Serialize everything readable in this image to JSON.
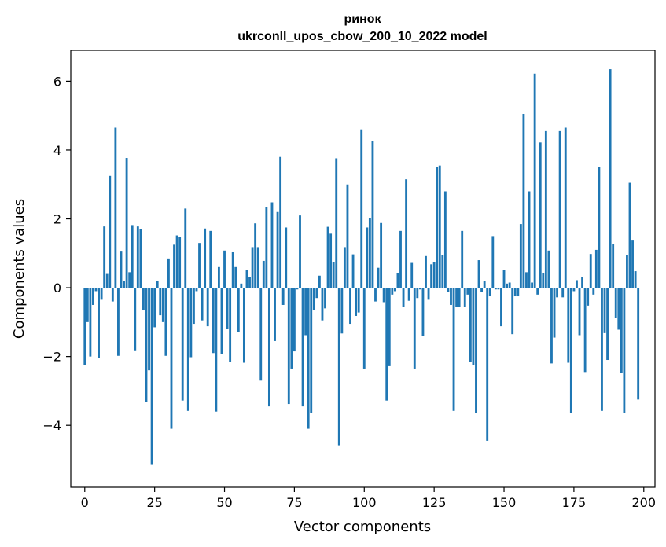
{
  "chart_data": {
    "type": "bar",
    "title_line1": "ринок",
    "title_line2": "ukrconll_upos_cbow_200_10_2022 model",
    "xlabel": "Vector components",
    "ylabel": "Components values",
    "xlim": [
      -5,
      204
    ],
    "ylim": [
      -5.8,
      6.9
    ],
    "x_ticks": [
      0,
      25,
      50,
      75,
      100,
      125,
      150,
      175,
      200
    ],
    "y_ticks": [
      -4,
      -2,
      0,
      2,
      4,
      6
    ],
    "grid": false,
    "bar_color": "#1f77b4",
    "values": [
      -2.25,
      -1.0,
      -2.0,
      -0.5,
      -0.1,
      -2.05,
      -0.35,
      1.78,
      0.4,
      3.25,
      -0.4,
      4.65,
      -1.98,
      1.05,
      0.2,
      3.77,
      0.45,
      1.82,
      -1.82,
      1.78,
      1.7,
      -0.65,
      -3.32,
      -2.4,
      -5.15,
      -1.15,
      0.2,
      -0.8,
      -1.0,
      -1.98,
      0.85,
      -4.1,
      1.25,
      1.52,
      1.47,
      -3.28,
      2.3,
      -3.58,
      -2.02,
      -1.05,
      -0.1,
      1.3,
      -0.95,
      1.72,
      -1.12,
      1.65,
      -1.9,
      -3.6,
      0.6,
      -1.92,
      1.08,
      -1.2,
      -2.15,
      1.03,
      0.6,
      -1.3,
      0.12,
      -2.18,
      0.52,
      0.3,
      1.18,
      1.87,
      1.18,
      -2.7,
      0.78,
      2.35,
      -3.45,
      2.48,
      -1.55,
      2.2,
      3.8,
      -0.5,
      1.75,
      -3.38,
      -2.35,
      -1.85,
      -0.05,
      2.1,
      -3.45,
      -1.38,
      -4.1,
      -3.65,
      -0.65,
      -0.3,
      0.35,
      -0.95,
      -0.6,
      1.77,
      1.57,
      0.75,
      3.76,
      -4.58,
      -1.33,
      1.18,
      3.0,
      -1.05,
      0.97,
      -0.82,
      -0.72,
      4.6,
      -2.35,
      1.75,
      2.02,
      4.27,
      -0.4,
      0.58,
      1.88,
      -0.42,
      -3.28,
      -2.28,
      -0.2,
      -0.1,
      0.42,
      1.65,
      -0.55,
      3.15,
      -0.38,
      0.72,
      -2.35,
      -0.3,
      -0.05,
      -1.4,
      0.92,
      -0.35,
      0.68,
      0.75,
      3.5,
      3.55,
      0.95,
      2.8,
      -0.12,
      -0.5,
      -3.58,
      -0.55,
      -0.55,
      1.65,
      -0.55,
      -0.2,
      -2.15,
      -2.25,
      -3.65,
      0.8,
      -0.12,
      0.2,
      -4.45,
      -0.25,
      1.5,
      -0.05,
      -0.05,
      -1.12,
      0.52,
      0.12,
      0.15,
      -1.35,
      -0.25,
      -0.25,
      1.85,
      5.05,
      0.45,
      2.8,
      0.15,
      6.22,
      -0.2,
      4.22,
      0.42,
      4.55,
      1.08,
      -2.2,
      -1.45,
      -0.28,
      4.55,
      -0.28,
      4.65,
      -2.18,
      -3.65,
      -0.1,
      0.22,
      -1.38,
      0.3,
      -2.45,
      -0.52,
      0.98,
      -0.2,
      1.1,
      3.5,
      -3.58,
      -1.32,
      -2.1,
      6.35,
      1.28,
      -0.88,
      -1.22,
      -2.48,
      -3.65,
      0.95,
      3.05,
      1.37,
      0.48,
      -3.25
    ]
  }
}
